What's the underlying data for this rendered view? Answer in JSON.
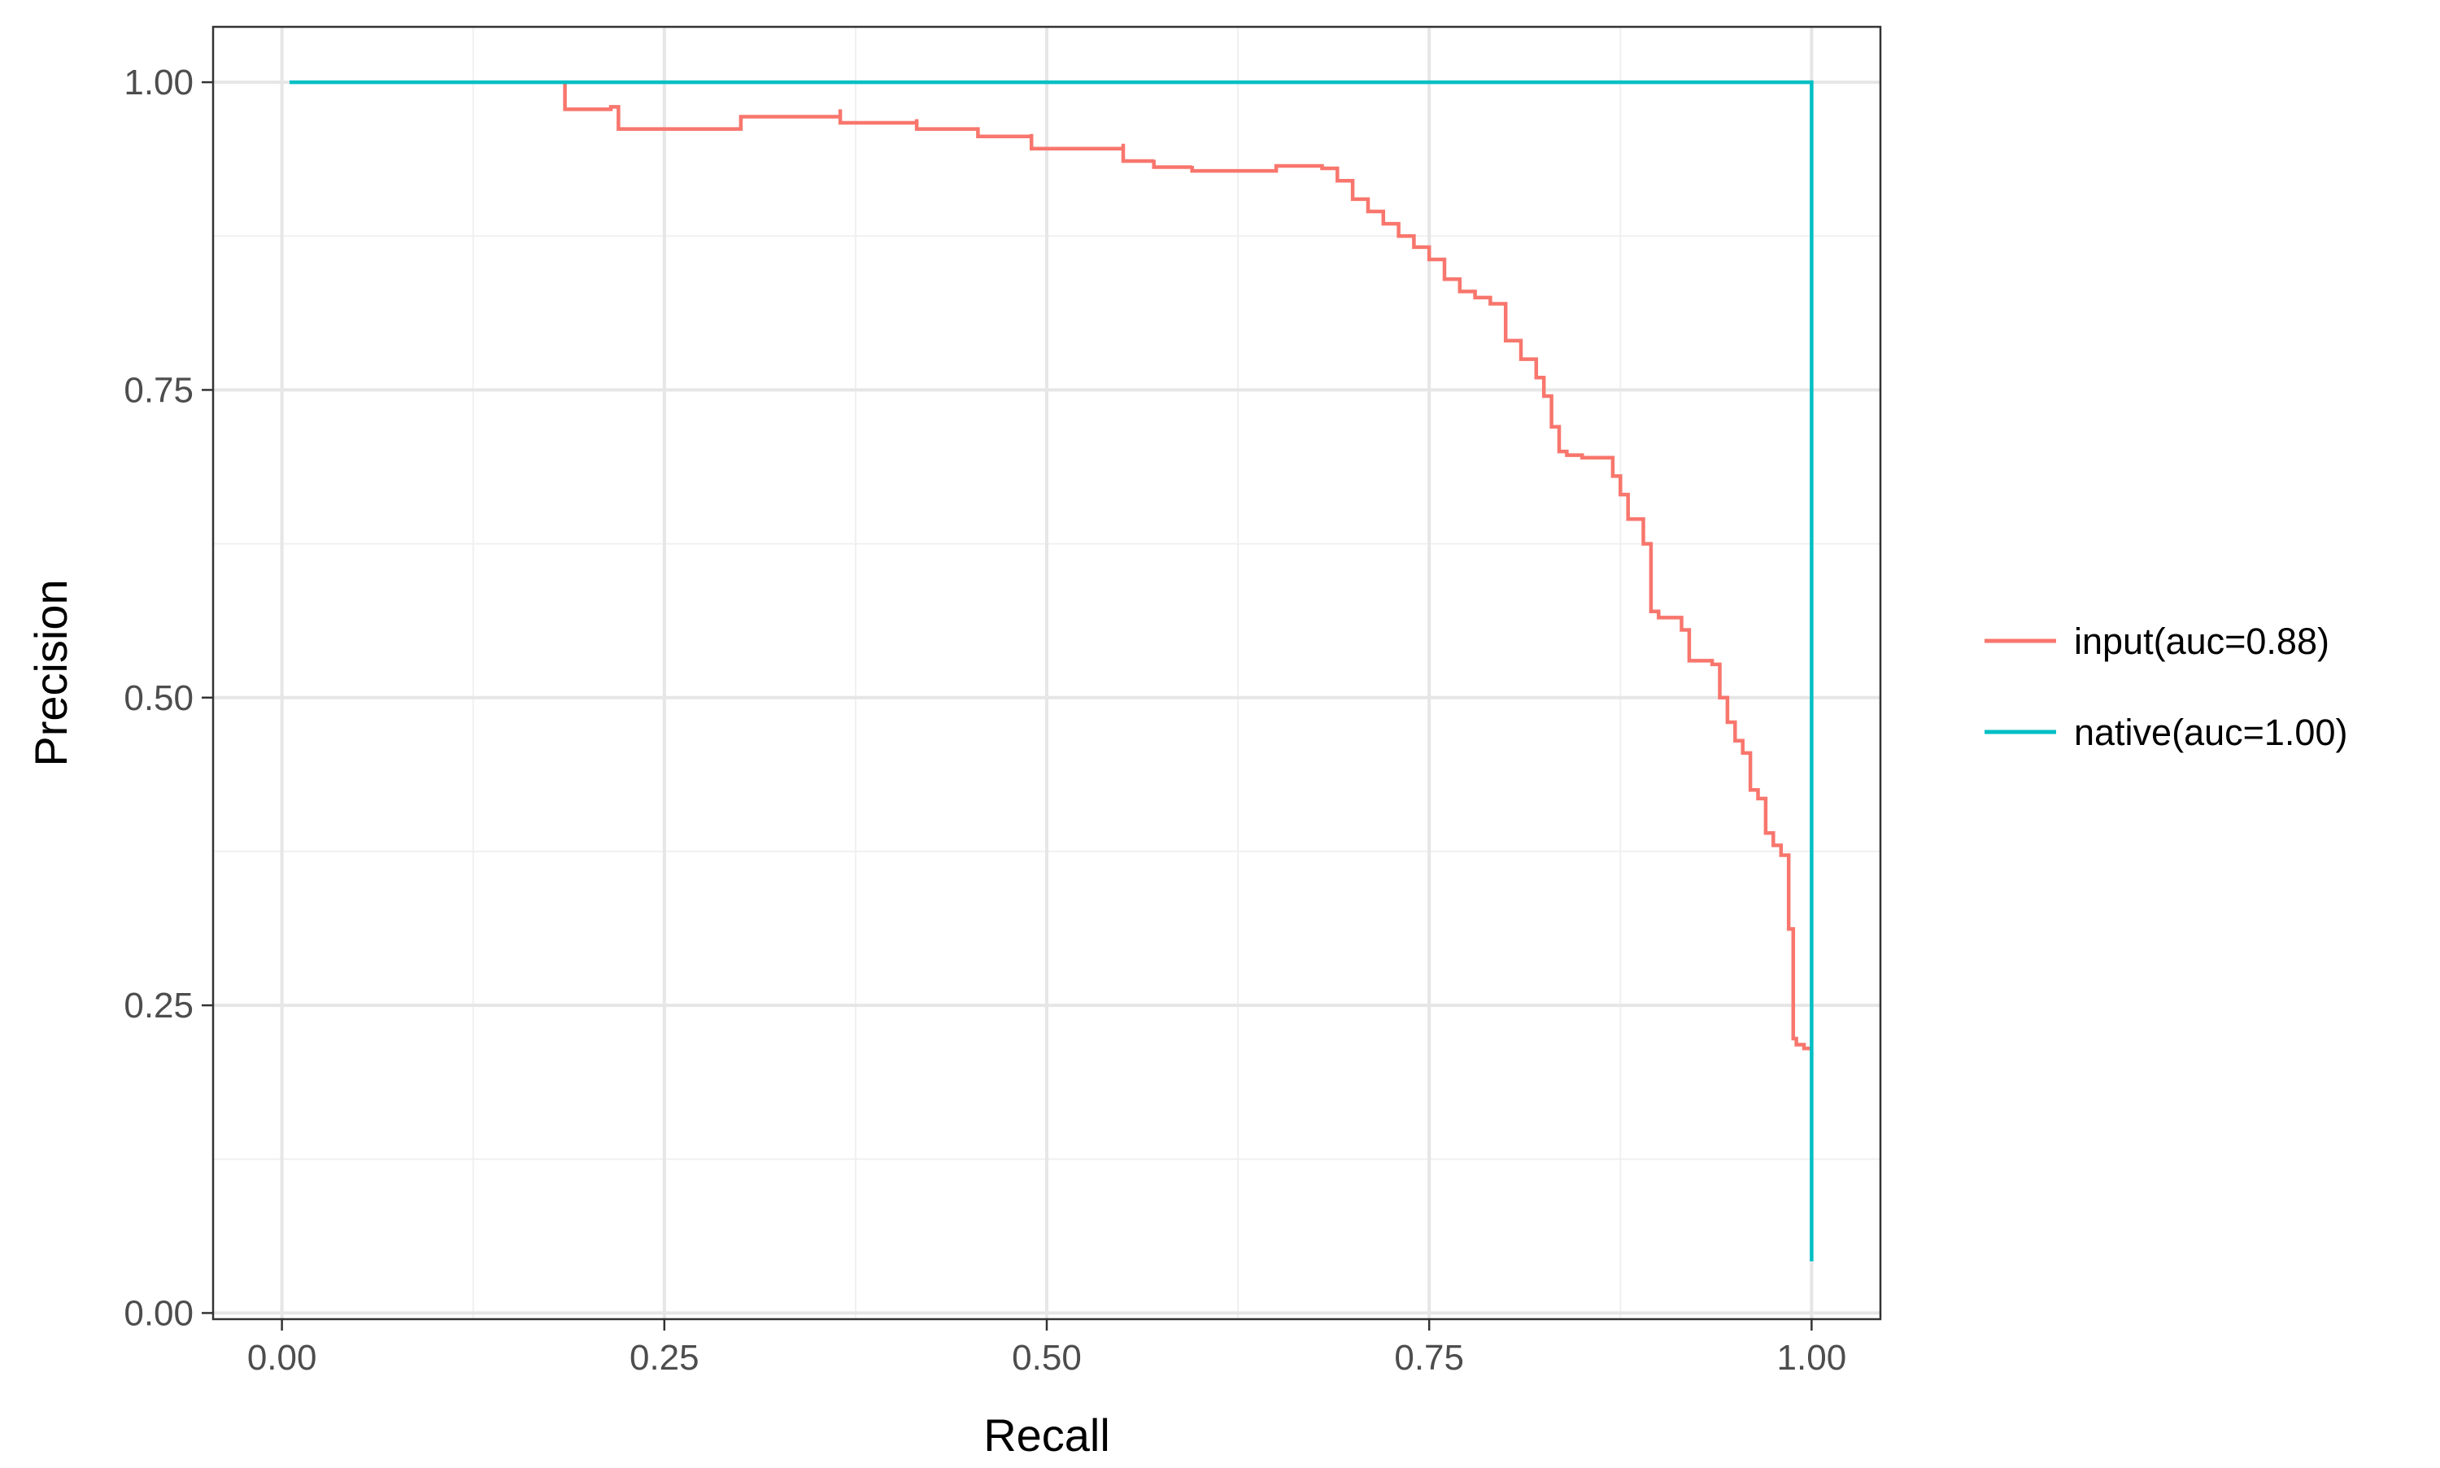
{
  "chart_data": {
    "type": "line",
    "title": "",
    "xlabel": "Recall",
    "ylabel": "Precision",
    "xlim": [
      -0.045,
      1.045
    ],
    "ylim": [
      -0.005,
      1.045
    ],
    "x_ticks": [
      0.0,
      0.25,
      0.5,
      0.75,
      1.0
    ],
    "x_tick_labels": [
      "0.00",
      "0.25",
      "0.50",
      "0.75",
      "1.00"
    ],
    "y_ticks": [
      0.0,
      0.25,
      0.5,
      0.75,
      1.0
    ],
    "y_tick_labels": [
      "0.00",
      "0.25",
      "0.50",
      "0.75",
      "1.00"
    ],
    "grid": true,
    "legend_position": "right",
    "series": [
      {
        "name": "input(auc=0.88)",
        "color": "#F8766D",
        "step": true,
        "x": [
          0.185,
          0.185,
          0.215,
          0.22,
          0.3,
          0.365,
          0.365,
          0.415,
          0.415,
          0.455,
          0.455,
          0.49,
          0.49,
          0.55,
          0.55,
          0.57,
          0.57,
          0.595,
          0.595,
          0.65,
          0.68,
          0.69,
          0.7,
          0.71,
          0.72,
          0.73,
          0.74,
          0.75,
          0.76,
          0.77,
          0.78,
          0.79,
          0.8,
          0.81,
          0.82,
          0.825,
          0.83,
          0.835,
          0.84,
          0.85,
          0.86,
          0.87,
          0.875,
          0.88,
          0.89,
          0.895,
          0.9,
          0.915,
          0.92,
          0.935,
          0.94,
          0.945,
          0.95,
          0.955,
          0.96,
          0.965,
          0.97,
          0.975,
          0.98,
          0.985,
          0.988,
          0.99,
          0.995,
          1.0
        ],
        "y": [
          1.0,
          0.978,
          0.98,
          0.962,
          0.972,
          0.978,
          0.967,
          0.97,
          0.962,
          0.962,
          0.956,
          0.958,
          0.946,
          0.95,
          0.936,
          0.937,
          0.931,
          0.932,
          0.928,
          0.932,
          0.93,
          0.92,
          0.905,
          0.895,
          0.885,
          0.875,
          0.866,
          0.856,
          0.84,
          0.83,
          0.825,
          0.82,
          0.79,
          0.775,
          0.76,
          0.745,
          0.72,
          0.7,
          0.697,
          0.695,
          0.695,
          0.68,
          0.665,
          0.645,
          0.625,
          0.57,
          0.565,
          0.555,
          0.53,
          0.527,
          0.5,
          0.48,
          0.465,
          0.455,
          0.425,
          0.418,
          0.39,
          0.38,
          0.372,
          0.312,
          0.223,
          0.218,
          0.215,
          0.215
        ]
      },
      {
        "name": "native(auc=1.00)",
        "color": "#00BFC4",
        "step": true,
        "x": [
          0.005,
          1.0,
          1.0
        ],
        "y": [
          1.0,
          1.0,
          0.042
        ]
      }
    ]
  }
}
